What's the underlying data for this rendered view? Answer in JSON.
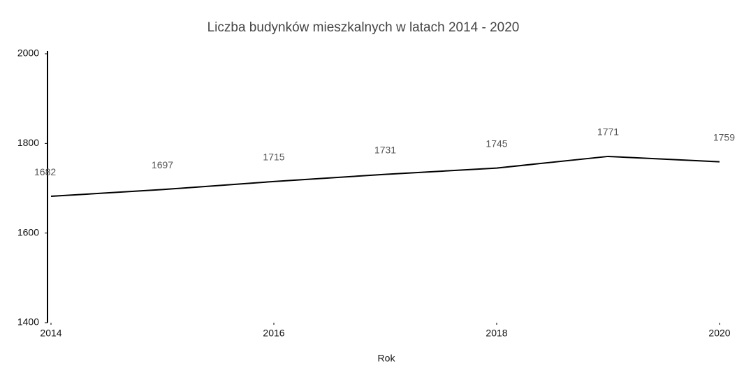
{
  "chart_data": {
    "type": "line",
    "title": "Liczba budynków mieszkalnych w latach 2014 - 2020",
    "x_label": "Rok",
    "x": [
      2014,
      2015,
      2016,
      2017,
      2018,
      2019,
      2020
    ],
    "series": [
      {
        "name": "Liczba budynków",
        "color": "#000000",
        "values": [
          1682,
          1697,
          1715,
          1731,
          1745,
          1771,
          1759
        ]
      }
    ],
    "xlim": [
      2014,
      2020
    ],
    "xticks": [
      2014,
      2016,
      2018,
      2020
    ],
    "ylim": [
      1400,
      2000
    ],
    "yticks": [
      1400,
      1600,
      1800,
      2000
    ]
  }
}
